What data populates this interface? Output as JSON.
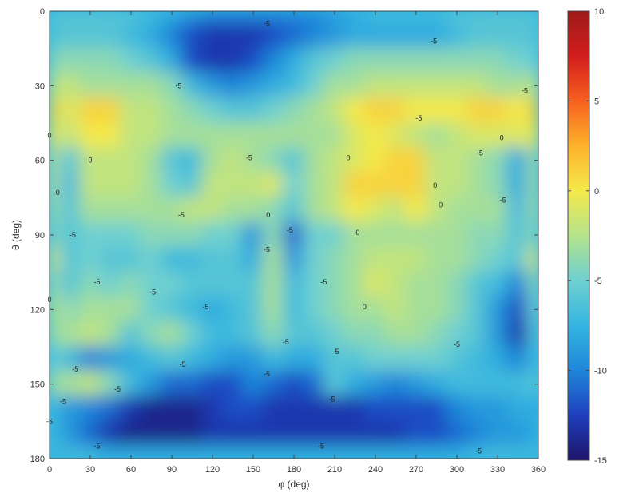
{
  "chart_data": {
    "type": "heatmap",
    "title": "",
    "xlabel": "φ (deg)",
    "ylabel": "θ (deg)",
    "xlim": [
      0,
      360
    ],
    "ylim": [
      0,
      180
    ],
    "x_ticks": [
      "0",
      "30",
      "60",
      "90",
      "120",
      "150",
      "180",
      "210",
      "240",
      "270",
      "300",
      "330",
      "360"
    ],
    "y_ticks": [
      "0",
      "30",
      "60",
      "90",
      "120",
      "150",
      "180"
    ],
    "colorbar": {
      "range": [
        -15,
        10
      ],
      "ticks": [
        "10",
        "5",
        "0",
        "-5",
        "-10",
        "-15"
      ],
      "colormap": "jet",
      "stops": [
        "#1e1569",
        "#1f3fbf",
        "#1f86d9",
        "#33b5e0",
        "#6fd0d0",
        "#b4e38c",
        "#f4e94a",
        "#fdb22a",
        "#f7601f",
        "#d21d1d",
        "#9e1a1a"
      ]
    },
    "x": [
      0,
      15,
      30,
      45,
      60,
      75,
      90,
      105,
      120,
      135,
      150,
      165,
      180,
      195,
      210,
      225,
      240,
      255,
      270,
      285,
      300,
      315,
      330,
      345,
      360
    ],
    "y": [
      0,
      10,
      20,
      30,
      40,
      50,
      60,
      70,
      80,
      90,
      100,
      110,
      120,
      130,
      140,
      150,
      160,
      170,
      180
    ],
    "z": [
      [
        -6,
        -6,
        -6,
        -6,
        -6,
        -7,
        -8,
        -9,
        -10,
        -10,
        -10,
        -10,
        -10,
        -10,
        -9,
        -8,
        -7,
        -7,
        -7,
        -7,
        -6,
        -6,
        -6,
        -6,
        -6
      ],
      [
        -6,
        -6,
        -6,
        -6,
        -7,
        -8,
        -10,
        -12,
        -13,
        -13,
        -13,
        -12,
        -11,
        -10,
        -9,
        -8,
        -8,
        -8,
        -8,
        -8,
        -7,
        -6,
        -6,
        -6,
        -6
      ],
      [
        -4,
        -4,
        -4,
        -4,
        -5,
        -6,
        -8,
        -12,
        -13,
        -13,
        -12,
        -10,
        -8,
        -6,
        -5,
        -4,
        -4,
        -4,
        -4,
        -4,
        -4,
        -4,
        -4,
        -5,
        -5
      ],
      [
        -2,
        -2,
        -3,
        -3,
        -3,
        -3,
        -4,
        -7,
        -9,
        -10,
        -9,
        -8,
        -7,
        -5,
        -3,
        -3,
        -2,
        -2,
        -2,
        -2,
        -2,
        -2,
        -3,
        -3,
        -2
      ],
      [
        1,
        -1,
        1,
        1,
        -2,
        -2,
        -3,
        -4,
        -5,
        -6,
        -6,
        -5,
        -4,
        -3,
        -2,
        0,
        1,
        1,
        0,
        0,
        0,
        1,
        1,
        0,
        1
      ],
      [
        0,
        -2,
        0,
        0,
        -2,
        -2,
        -3,
        -3,
        -3,
        -3,
        -3,
        -3,
        -3,
        -3,
        -3,
        -1,
        0,
        -1,
        -2,
        -3,
        -2,
        -1,
        -1,
        -1,
        0
      ],
      [
        -2,
        -6,
        -2,
        -2,
        -2,
        -3,
        -6,
        -7,
        -3,
        -2,
        -3,
        -4,
        -6,
        -3,
        -2,
        -1,
        0,
        1,
        1,
        -2,
        -2,
        -3,
        -4,
        -8,
        -3
      ],
      [
        -2,
        -7,
        -2,
        -2,
        -2,
        -3,
        -5,
        -6,
        -2,
        -2,
        -2,
        -1,
        -5,
        -3,
        -2,
        1,
        1,
        1,
        1,
        -2,
        -2,
        -3,
        -4,
        -8,
        -3
      ],
      [
        -3,
        -6,
        -3,
        -3,
        -3,
        -3,
        -3,
        -2,
        -2,
        -3,
        -3,
        -4,
        -6,
        -3,
        -2,
        0,
        -1,
        -2,
        0,
        -2,
        -3,
        -3,
        -3,
        -7,
        -3
      ],
      [
        -4,
        -6,
        -5,
        -5,
        -5,
        -4,
        -4,
        -4,
        -5,
        -5,
        -9,
        -4,
        -11,
        -5,
        -5,
        -3,
        -3,
        -3,
        -3,
        -3,
        -3,
        -4,
        -4,
        -6,
        -4
      ],
      [
        -1,
        -6,
        -5,
        -6,
        -6,
        -5,
        -7,
        -7,
        -6,
        -6,
        -8,
        -3,
        -9,
        -5,
        -4,
        -3,
        -2,
        -2,
        -2,
        -3,
        -3,
        -4,
        -5,
        -6,
        -1
      ],
      [
        -3,
        -6,
        -4,
        -5,
        -4,
        -5,
        -5,
        -6,
        -6,
        -6,
        -6,
        -3,
        -7,
        -5,
        -4,
        -3,
        -1,
        -2,
        -3,
        -3,
        -4,
        -6,
        -7,
        -10,
        -4
      ],
      [
        -2,
        -4,
        -3,
        -3,
        -3,
        -5,
        -6,
        -7,
        -8,
        -7,
        -6,
        -3,
        -7,
        -5,
        -4,
        -3,
        -3,
        -2,
        -3,
        -3,
        -4,
        -6,
        -9,
        -12,
        -5
      ],
      [
        -3,
        -3,
        -2,
        -3,
        -6,
        -4,
        -3,
        -5,
        -7,
        -7,
        -6,
        -4,
        -6,
        -6,
        -5,
        -4,
        -4,
        -3,
        -3,
        -4,
        -5,
        -6,
        -9,
        -13,
        -6
      ],
      [
        -5,
        -7,
        -10,
        -9,
        -8,
        -7,
        -6,
        -7,
        -8,
        -9,
        -9,
        -7,
        -8,
        -8,
        -6,
        -6,
        -5,
        -5,
        -5,
        -5,
        -6,
        -7,
        -8,
        -10,
        -7
      ],
      [
        -3,
        -3,
        -2,
        -4,
        -7,
        -9,
        -11,
        -11,
        -12,
        -12,
        -10,
        -11,
        -12,
        -11,
        -6,
        -8,
        -9,
        -10,
        -9,
        -8,
        -7,
        -7,
        -7,
        -7,
        -6
      ],
      [
        -7,
        -9,
        -10,
        -11,
        -13,
        -14,
        -14,
        -14,
        -13,
        -12,
        -12,
        -13,
        -13,
        -13,
        -13,
        -13,
        -12,
        -12,
        -12,
        -12,
        -10,
        -9,
        -9,
        -8,
        -8
      ],
      [
        -7,
        -9,
        -11,
        -13,
        -14,
        -14,
        -14,
        -14,
        -13,
        -13,
        -13,
        -13,
        -13,
        -13,
        -13,
        -13,
        -13,
        -13,
        -12,
        -12,
        -11,
        -10,
        -9,
        -9,
        -8
      ],
      [
        -7,
        -7,
        -7,
        -8,
        -8,
        -8,
        -8,
        -8,
        -8,
        -8,
        -8,
        -8,
        -8,
        -8,
        -8,
        -8,
        -8,
        -8,
        -8,
        -8,
        -8,
        -7,
        -7,
        -7,
        -7
      ]
    ],
    "contour_labels": [
      {
        "text": "-5",
        "x": 160,
        "y": 5
      },
      {
        "text": "-5",
        "x": 283,
        "y": 12
      },
      {
        "text": "-5",
        "x": 95,
        "y": 30
      },
      {
        "text": "-5",
        "x": 350,
        "y": 32
      },
      {
        "text": "-5",
        "x": 272,
        "y": 43
      },
      {
        "text": "0",
        "x": 30,
        "y": 60
      },
      {
        "text": "-5",
        "x": 147,
        "y": 59
      },
      {
        "text": "0",
        "x": 220,
        "y": 59
      },
      {
        "text": "0",
        "x": 0,
        "y": 50
      },
      {
        "text": "-5",
        "x": 317,
        "y": 57
      },
      {
        "text": "0",
        "x": 333,
        "y": 51
      },
      {
        "text": "0",
        "x": 6,
        "y": 73
      },
      {
        "text": "0",
        "x": 284,
        "y": 70
      },
      {
        "text": "0",
        "x": 288,
        "y": 78
      },
      {
        "text": "-5",
        "x": 334,
        "y": 76
      },
      {
        "text": "-5",
        "x": 97,
        "y": 82
      },
      {
        "text": "0",
        "x": 161,
        "y": 82
      },
      {
        "text": "-5",
        "x": 177,
        "y": 88
      },
      {
        "text": "0",
        "x": 227,
        "y": 89
      },
      {
        "text": "-5",
        "x": 17,
        "y": 90
      },
      {
        "text": "-5",
        "x": 160,
        "y": 96
      },
      {
        "text": "-5",
        "x": 202,
        "y": 109
      },
      {
        "text": "0",
        "x": 0,
        "y": 116
      },
      {
        "text": "-5",
        "x": 35,
        "y": 109
      },
      {
        "text": "-5",
        "x": 76,
        "y": 113
      },
      {
        "text": "-5",
        "x": 115,
        "y": 119
      },
      {
        "text": "0",
        "x": 232,
        "y": 119
      },
      {
        "text": "-5",
        "x": 174,
        "y": 133
      },
      {
        "text": "-5",
        "x": 300,
        "y": 134
      },
      {
        "text": "-5",
        "x": 211,
        "y": 137
      },
      {
        "text": "-5",
        "x": 98,
        "y": 142
      },
      {
        "text": "-5",
        "x": 19,
        "y": 144
      },
      {
        "text": "-5",
        "x": 160,
        "y": 146
      },
      {
        "text": "-5",
        "x": 50,
        "y": 152
      },
      {
        "text": "-5",
        "x": 208,
        "y": 156
      },
      {
        "text": "-5",
        "x": 10,
        "y": 157
      },
      {
        "text": "-5",
        "x": 0,
        "y": 165
      },
      {
        "text": "-5",
        "x": 35,
        "y": 175
      },
      {
        "text": "-5",
        "x": 200,
        "y": 175
      },
      {
        "text": "-5",
        "x": 316,
        "y": 177
      }
    ]
  }
}
